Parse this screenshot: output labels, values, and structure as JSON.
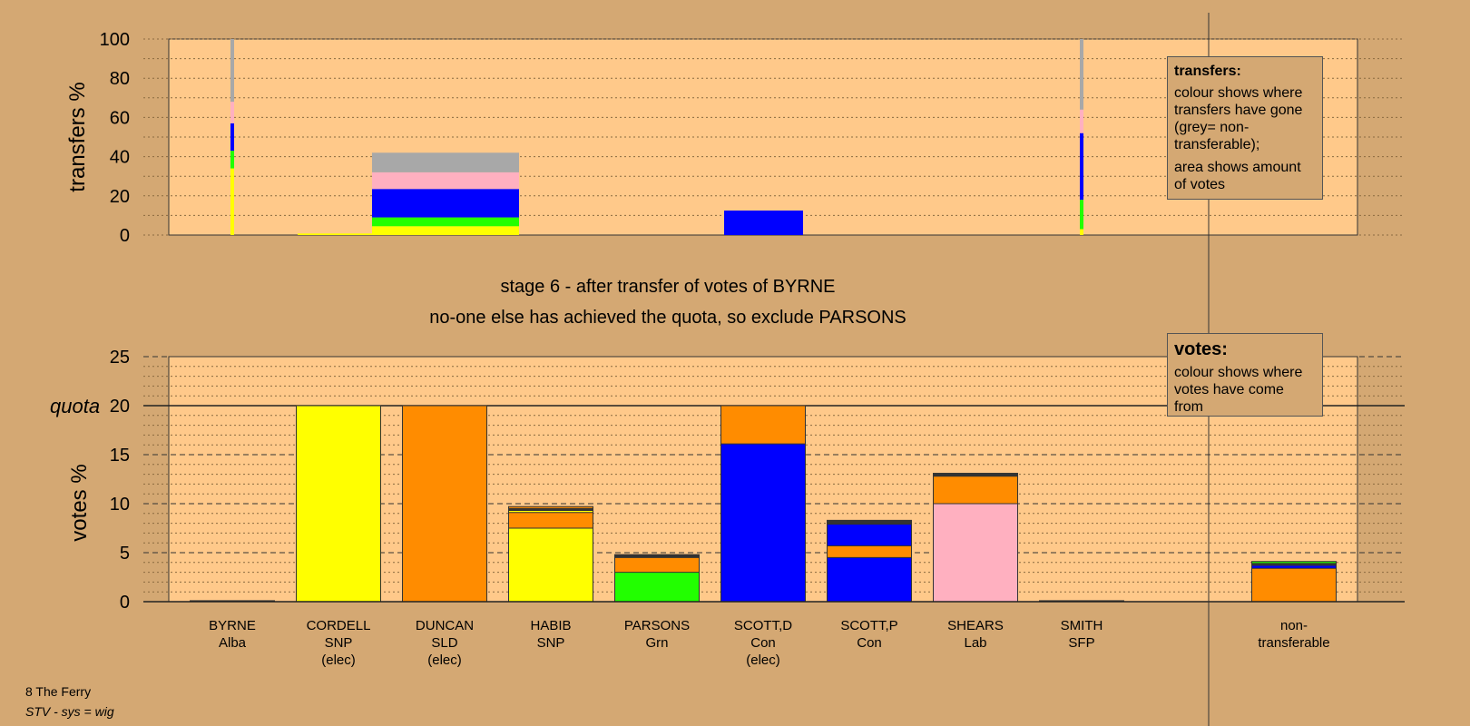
{
  "chart_data": {
    "type": "bar",
    "candidates": [
      {
        "name": "BYRNE",
        "party": "Alba",
        "note": ""
      },
      {
        "name": "CORDELL",
        "party": "SNP",
        "note": "(elec)"
      },
      {
        "name": "DUNCAN",
        "party": "SLD",
        "note": "(elec)"
      },
      {
        "name": "HABIB",
        "party": "SNP",
        "note": ""
      },
      {
        "name": "PARSONS",
        "party": "Grn",
        "note": ""
      },
      {
        "name": "SCOTT,D",
        "party": "Con",
        "note": "(elec)"
      },
      {
        "name": "SCOTT,P",
        "party": "Con",
        "note": ""
      },
      {
        "name": "SHEARS",
        "party": "Lab",
        "note": ""
      },
      {
        "name": "SMITH",
        "party": "SFP",
        "note": ""
      },
      {
        "name": "non-",
        "party": "transferable",
        "note": ""
      }
    ],
    "colors": {
      "yellow": "#ffff00",
      "orange": "#ff8c00",
      "blue": "#0000ff",
      "green": "#22ff00",
      "pink": "#ffb0c0",
      "grey": "#a8a8a8",
      "dark": "#333333"
    },
    "transfers": {
      "ylabel": "transfers %",
      "yticks": [
        0,
        20,
        40,
        60,
        80,
        100
      ],
      "ylim": [
        0,
        100
      ],
      "bars": [
        {
          "index": 0,
          "width": "thin",
          "segments": [
            {
              "color": "yellow",
              "from": 0,
              "to": 34
            },
            {
              "color": "green",
              "from": 34,
              "to": 43
            },
            {
              "color": "blue",
              "from": 43,
              "to": 57
            },
            {
              "color": "pink",
              "from": 57,
              "to": 68
            },
            {
              "color": "grey",
              "from": 68,
              "to": 100
            }
          ]
        },
        {
          "index": 1,
          "width": "wide",
          "segments": [
            {
              "color": "yellow",
              "from": 0,
              "to": 0.8
            }
          ]
        },
        {
          "index": 2,
          "width": "wide",
          "segments": [
            {
              "color": "yellow",
              "from": 0,
              "to": 4.5
            },
            {
              "color": "green",
              "from": 4.5,
              "to": 9
            },
            {
              "color": "blue",
              "from": 9,
              "to": 23.5
            },
            {
              "color": "pink",
              "from": 23.5,
              "to": 32
            },
            {
              "color": "grey",
              "from": 32,
              "to": 42
            }
          ]
        },
        {
          "index": 5,
          "width": "wide",
          "segments": [
            {
              "color": "blue",
              "from": 0,
              "to": 12.5
            }
          ]
        },
        {
          "index": 8,
          "width": "thin",
          "segments": [
            {
              "color": "yellow",
              "from": 0,
              "to": 3
            },
            {
              "color": "green",
              "from": 3,
              "to": 18
            },
            {
              "color": "blue",
              "from": 18,
              "to": 52
            },
            {
              "color": "pink",
              "from": 52,
              "to": 64
            },
            {
              "color": "grey",
              "from": 64,
              "to": 100
            }
          ]
        }
      ]
    },
    "votes": {
      "ylabel": "votes %",
      "yticks": [
        0,
        5,
        10,
        15,
        20,
        25
      ],
      "ylim": [
        0,
        25
      ],
      "quota": 20,
      "quota_label": "quota",
      "bars": [
        {
          "index": 0,
          "segments": [
            {
              "color": "dark",
              "from": 0,
              "to": 0.1
            }
          ]
        },
        {
          "index": 1,
          "segments": [
            {
              "color": "yellow",
              "from": 0,
              "to": 20
            }
          ]
        },
        {
          "index": 2,
          "segments": [
            {
              "color": "orange",
              "from": 0,
              "to": 20
            }
          ]
        },
        {
          "index": 3,
          "segments": [
            {
              "color": "yellow",
              "from": 0,
              "to": 7.5
            },
            {
              "color": "orange",
              "from": 7.5,
              "to": 9.1
            },
            {
              "color": "yellow",
              "from": 9.1,
              "to": 9.3
            },
            {
              "color": "dark",
              "from": 9.3,
              "to": 9.5
            },
            {
              "color": "orange",
              "from": 9.5,
              "to": 9.7
            }
          ]
        },
        {
          "index": 4,
          "segments": [
            {
              "color": "green",
              "from": 0,
              "to": 3
            },
            {
              "color": "orange",
              "from": 3,
              "to": 4.5
            },
            {
              "color": "dark",
              "from": 4.5,
              "to": 4.8
            }
          ]
        },
        {
          "index": 5,
          "segments": [
            {
              "color": "blue",
              "from": 0,
              "to": 16.1
            },
            {
              "color": "orange",
              "from": 16.1,
              "to": 20
            }
          ]
        },
        {
          "index": 6,
          "segments": [
            {
              "color": "blue",
              "from": 0,
              "to": 4.5
            },
            {
              "color": "orange",
              "from": 4.5,
              "to": 5.7
            },
            {
              "color": "blue",
              "from": 5.7,
              "to": 7.9
            },
            {
              "color": "dark",
              "from": 7.9,
              "to": 8.3
            }
          ]
        },
        {
          "index": 7,
          "segments": [
            {
              "color": "pink",
              "from": 0,
              "to": 10
            },
            {
              "color": "orange",
              "from": 10,
              "to": 12.8
            },
            {
              "color": "dark",
              "from": 12.8,
              "to": 13.1
            }
          ]
        },
        {
          "index": 8,
          "segments": [
            {
              "color": "dark",
              "from": 0,
              "to": 0.1
            }
          ]
        },
        {
          "index": 9,
          "segments": [
            {
              "color": "orange",
              "from": 0,
              "to": 3.4
            },
            {
              "color": "blue",
              "from": 3.4,
              "to": 3.7
            },
            {
              "color": "dark",
              "from": 3.7,
              "to": 3.9
            },
            {
              "color": "green",
              "from": 3.9,
              "to": 4.1
            }
          ]
        }
      ]
    }
  },
  "headline": {
    "line1": "stage 6 - after transfer of votes of BYRNE",
    "line2": "no-one else has achieved the quota, so exclude PARSONS"
  },
  "legend_transfers": {
    "title": "transfers:",
    "text1": "colour shows where transfers have gone (grey= non-transferable);",
    "text2": "area shows amount of votes"
  },
  "legend_votes": {
    "title": "votes:",
    "text1": "colour shows where votes have come from"
  },
  "footer": {
    "line1": "8 The Ferry",
    "line2": "STV - sys = wig"
  }
}
